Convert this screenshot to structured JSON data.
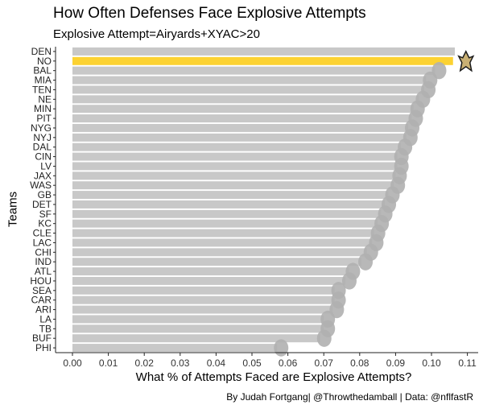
{
  "chart_data": {
    "type": "bar",
    "orientation": "horizontal",
    "title": "How Often Defenses Face Explosive Attempts",
    "subtitle": "Explosive Attempt=Airyards+XYAC>20",
    "xlabel": "What % of Attempts Faced are Explosive Attempts?",
    "ylabel": "Teams",
    "caption": "By Judah Fortgang| @Throwthedamball | Data: @nflfastR",
    "xlim": [
      0,
      0.113
    ],
    "xticks": [
      "0.00",
      "0.01",
      "0.02",
      "0.03",
      "0.04",
      "0.05",
      "0.06",
      "0.07",
      "0.08",
      "0.09",
      "0.10",
      "0.11"
    ],
    "categories": [
      "DEN",
      "NO",
      "BAL",
      "MIA",
      "TEN",
      "NE",
      "MIN",
      "PIT",
      "NYG",
      "NYJ",
      "DAL",
      "CIN",
      "LV",
      "JAX",
      "WAS",
      "GB",
      "DET",
      "SF",
      "KC",
      "CLE",
      "LAC",
      "CHI",
      "IND",
      "ATL",
      "HOU",
      "SEA",
      "CAR",
      "ARI",
      "LA",
      "TB",
      "BUF",
      "PHI"
    ],
    "values": [
      0.1065,
      0.106,
      0.101,
      0.0985,
      0.098,
      0.0965,
      0.095,
      0.0945,
      0.0935,
      0.093,
      0.0915,
      0.0905,
      0.0905,
      0.09,
      0.0895,
      0.088,
      0.087,
      0.086,
      0.085,
      0.084,
      0.0835,
      0.082,
      0.0805,
      0.077,
      0.076,
      0.073,
      0.073,
      0.0725,
      0.07,
      0.07,
      0.069,
      0.057
    ],
    "highlight": "NO",
    "bar_color": "#c8c8c8",
    "highlight_color": "#fcd231",
    "logo_color": "#b0b0b0",
    "grid": false
  }
}
